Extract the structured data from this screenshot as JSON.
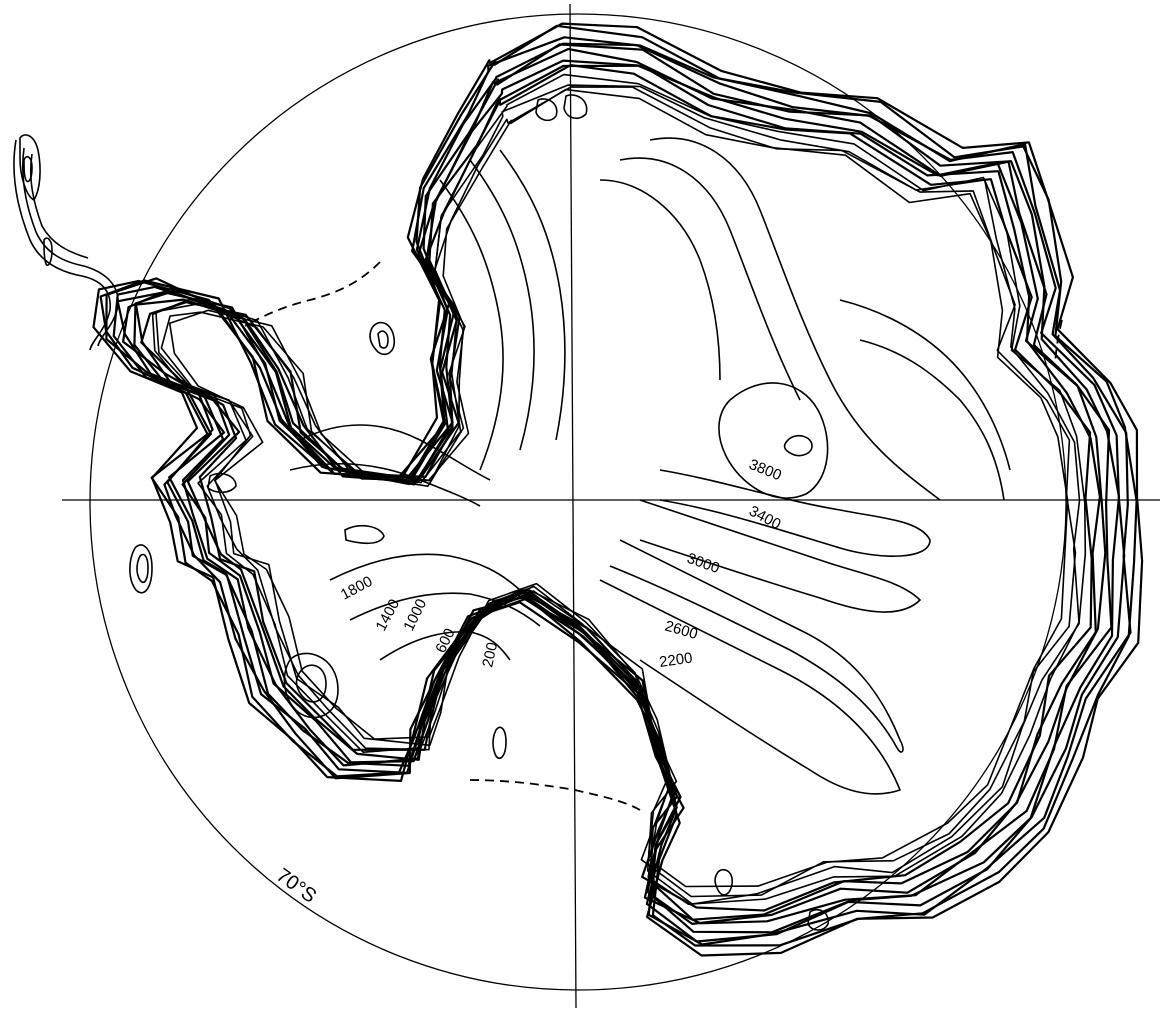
{
  "map": {
    "latitude_circle_label": "70°S",
    "contour_labels": {
      "c3800": "3800",
      "c3400": "3400",
      "c3000": "3000",
      "c2600": "2600",
      "c2200": "2200",
      "c1800": "1800",
      "c1400": "1400",
      "c1000": "1000",
      "c600": "600",
      "c200": "200"
    }
  }
}
